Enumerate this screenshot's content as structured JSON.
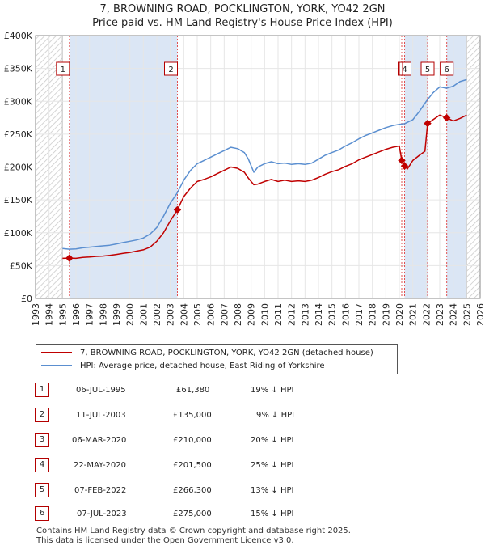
{
  "title_line1": "7, BROWNING ROAD, POCKLINGTON, YORK, YO42 2GN",
  "title_line2": "Price paid vs. HM Land Registry's House Price Index (HPI)",
  "chart_data": {
    "type": "line",
    "xlim": [
      1993,
      2026
    ],
    "ylim": [
      0,
      400000
    ],
    "x_ticks": [
      1993,
      1994,
      1995,
      1996,
      1997,
      1998,
      1999,
      2000,
      2001,
      2002,
      2003,
      2004,
      2005,
      2006,
      2007,
      2008,
      2009,
      2010,
      2011,
      2012,
      2013,
      2014,
      2015,
      2016,
      2017,
      2018,
      2019,
      2020,
      2021,
      2022,
      2023,
      2024,
      2025,
      2026
    ],
    "y_ticks": [
      {
        "value": 0,
        "label": "£0"
      },
      {
        "value": 50000,
        "label": "£50K"
      },
      {
        "value": 100000,
        "label": "£100K"
      },
      {
        "value": 150000,
        "label": "£150K"
      },
      {
        "value": 200000,
        "label": "£200K"
      },
      {
        "value": 250000,
        "label": "£250K"
      },
      {
        "value": 300000,
        "label": "£300K"
      },
      {
        "value": 350000,
        "label": "£350K"
      },
      {
        "value": 400000,
        "label": "£400K"
      }
    ],
    "hatched_ranges": [
      [
        1993,
        1995.0
      ],
      [
        2025.0,
        2026
      ]
    ],
    "shaded_ranges": [
      [
        1995.51,
        2003.53
      ],
      [
        2020.39,
        2022.1
      ],
      [
        2023.52,
        2025.0
      ]
    ],
    "series": [
      {
        "name": "HPI: Average price, detached house, East Riding of Yorkshire",
        "color": "#5b8fd0",
        "x": [
          1995.0,
          1995.5,
          1996.0,
          1996.5,
          1997.0,
          1997.5,
          1998.0,
          1998.5,
          1999.0,
          1999.5,
          2000.0,
          2000.5,
          2001.0,
          2001.5,
          2002.0,
          2002.5,
          2003.0,
          2003.5,
          2004.0,
          2004.5,
          2005.0,
          2005.5,
          2006.0,
          2006.5,
          2007.0,
          2007.5,
          2008.0,
          2008.5,
          2008.8,
          2009.2,
          2009.5,
          2010.0,
          2010.5,
          2011.0,
          2011.5,
          2012.0,
          2012.5,
          2013.0,
          2013.5,
          2014.0,
          2014.5,
          2015.0,
          2015.5,
          2016.0,
          2016.5,
          2017.0,
          2017.5,
          2018.0,
          2018.5,
          2019.0,
          2019.5,
          2020.0,
          2020.4,
          2020.5,
          2021.0,
          2021.5,
          2022.0,
          2022.5,
          2023.0,
          2023.5,
          2024.0,
          2024.5,
          2025.0
        ],
        "values": [
          76000,
          75000,
          75500,
          77000,
          78000,
          79000,
          80000,
          81000,
          83000,
          85000,
          87000,
          89000,
          92000,
          98000,
          108000,
          125000,
          145000,
          160000,
          180000,
          195000,
          205000,
          210000,
          215000,
          220000,
          225000,
          230000,
          228000,
          222000,
          212000,
          192000,
          200000,
          205000,
          208000,
          205000,
          206000,
          204000,
          205000,
          204000,
          206000,
          212000,
          218000,
          222000,
          226000,
          232000,
          237000,
          243000,
          248000,
          252000,
          256000,
          260000,
          263000,
          265000,
          266000,
          267000,
          272000,
          285000,
          300000,
          313000,
          322000,
          320000,
          323000,
          330000,
          333000
        ]
      },
      {
        "name": "7, BROWNING ROAD, POCKLINGTON, YORK, YO42 2GN (detached house)",
        "color": "#c00000",
        "x": [
          1995.0,
          1995.51,
          1996.0,
          1996.5,
          1997.0,
          1997.5,
          1998.0,
          1998.5,
          1999.0,
          1999.5,
          2000.0,
          2000.5,
          2001.0,
          2001.5,
          2002.0,
          2002.5,
          2003.0,
          2003.53,
          2004.0,
          2004.5,
          2005.0,
          2005.5,
          2006.0,
          2006.5,
          2007.0,
          2007.5,
          2008.0,
          2008.5,
          2008.8,
          2009.2,
          2009.5,
          2010.0,
          2010.5,
          2011.0,
          2011.5,
          2012.0,
          2012.5,
          2013.0,
          2013.5,
          2014.0,
          2014.5,
          2015.0,
          2015.5,
          2016.0,
          2016.5,
          2017.0,
          2017.5,
          2018.0,
          2018.5,
          2019.0,
          2019.5,
          2020.0,
          2020.18,
          2020.39,
          2020.6,
          2021.0,
          2021.5,
          2021.9,
          2022.1,
          2022.5,
          2023.0,
          2023.52,
          2024.0,
          2024.5,
          2025.0
        ],
        "values": [
          61000,
          61380,
          61000,
          62500,
          63000,
          64000,
          64500,
          65500,
          67000,
          68500,
          70000,
          72000,
          74000,
          78000,
          87000,
          100000,
          118000,
          135000,
          155000,
          168000,
          178000,
          181000,
          185000,
          190000,
          195000,
          200000,
          198000,
          192000,
          183000,
          173000,
          174000,
          178000,
          181000,
          178000,
          180000,
          178000,
          179000,
          178000,
          180000,
          184000,
          189000,
          193000,
          196000,
          201000,
          205000,
          211000,
          215000,
          219000,
          223000,
          227000,
          230000,
          232000,
          210000,
          201500,
          197000,
          210000,
          218000,
          224000,
          266300,
          272000,
          279000,
          275000,
          270000,
          274000,
          279000
        ]
      }
    ],
    "sales": [
      {
        "num": "1",
        "x": 1995.51,
        "value": 61380
      },
      {
        "num": "2",
        "x": 2003.53,
        "value": 135000
      },
      {
        "num": "3",
        "x": 2020.18,
        "value": 210000
      },
      {
        "num": "4",
        "x": 2020.39,
        "value": 201500
      },
      {
        "num": "5",
        "x": 2022.1,
        "value": 266300
      },
      {
        "num": "6",
        "x": 2023.52,
        "value": 275000
      }
    ],
    "box_labels": [
      "1",
      "2",
      "4",
      "5",
      "6"
    ]
  },
  "legend": {
    "property_label": "7, BROWNING ROAD, POCKLINGTON, YORK, YO42 2GN (detached house)",
    "hpi_label": "HPI: Average price, detached house, East Riding of Yorkshire",
    "property_color": "#c00000",
    "hpi_color": "#5b8fd0"
  },
  "sales_table": [
    {
      "num": "1",
      "date": "06-JUL-1995",
      "price": "£61,380",
      "hpi": "19% ↓ HPI"
    },
    {
      "num": "2",
      "date": "11-JUL-2003",
      "price": "£135,000",
      "hpi": "9% ↓ HPI"
    },
    {
      "num": "3",
      "date": "06-MAR-2020",
      "price": "£210,000",
      "hpi": "20% ↓ HPI"
    },
    {
      "num": "4",
      "date": "22-MAY-2020",
      "price": "£201,500",
      "hpi": "25% ↓ HPI"
    },
    {
      "num": "5",
      "date": "07-FEB-2022",
      "price": "£266,300",
      "hpi": "13% ↓ HPI"
    },
    {
      "num": "6",
      "date": "07-JUL-2023",
      "price": "£275,000",
      "hpi": "15% ↓ HPI"
    }
  ],
  "footer_line1": "Contains HM Land Registry data © Crown copyright and database right 2025.",
  "footer_line2": "This data is licensed under the Open Government Licence v3.0."
}
